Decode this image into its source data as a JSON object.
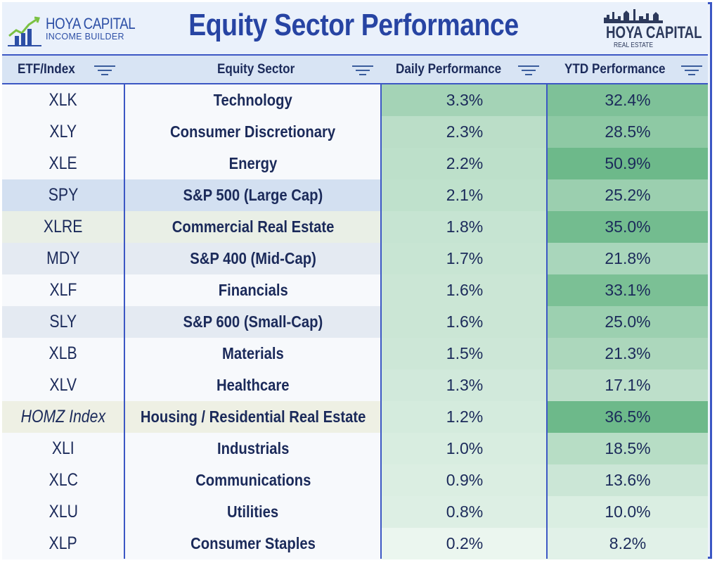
{
  "header": {
    "left_logo_line1": "HOYA CAPITAL",
    "left_logo_line2": "INCOME BUILDER",
    "title": "Equity Sector Performance",
    "right_logo_line1": "HOYA CAPITAL",
    "right_logo_line2": "REAL ESTATE"
  },
  "columns": {
    "etf": "ETF/Index",
    "sector": "Equity Sector",
    "daily": "Daily Performance",
    "ytd": "YTD Performance"
  },
  "colors": {
    "border": "#3c57c4",
    "title": "#2744a3",
    "strong_green": "#6db98a",
    "light_green": "#e6f4ec"
  },
  "rows": [
    {
      "etf": "XLK",
      "sector": "Technology",
      "daily": "3.3%",
      "ytd": "32.4%",
      "daily_val": 3.3,
      "ytd_val": 32.4,
      "highlight": ""
    },
    {
      "etf": "XLY",
      "sector": "Consumer Discretionary",
      "daily": "2.3%",
      "ytd": "28.5%",
      "daily_val": 2.3,
      "ytd_val": 28.5,
      "highlight": ""
    },
    {
      "etf": "XLE",
      "sector": "Energy",
      "daily": "2.2%",
      "ytd": "50.9%",
      "daily_val": 2.2,
      "ytd_val": 50.9,
      "highlight": ""
    },
    {
      "etf": "SPY",
      "sector": "S&P 500 (Large Cap)",
      "daily": "2.1%",
      "ytd": "25.2%",
      "daily_val": 2.1,
      "ytd_val": 25.2,
      "highlight": "#d3e0f1"
    },
    {
      "etf": "XLRE",
      "sector": "Commercial Real Estate",
      "daily": "1.8%",
      "ytd": "35.0%",
      "daily_val": 1.8,
      "ytd_val": 35.0,
      "highlight": "#e9efe6"
    },
    {
      "etf": "MDY",
      "sector": "S&P 400 (Mid-Cap)",
      "daily": "1.7%",
      "ytd": "21.8%",
      "daily_val": 1.7,
      "ytd_val": 21.8,
      "highlight": "#e4eaf2"
    },
    {
      "etf": "XLF",
      "sector": "Financials",
      "daily": "1.6%",
      "ytd": "33.1%",
      "daily_val": 1.6,
      "ytd_val": 33.1,
      "highlight": ""
    },
    {
      "etf": "SLY",
      "sector": "S&P 600 (Small-Cap)",
      "daily": "1.6%",
      "ytd": "25.0%",
      "daily_val": 1.6,
      "ytd_val": 25.0,
      "highlight": "#e4eaf2"
    },
    {
      "etf": "XLB",
      "sector": "Materials",
      "daily": "1.5%",
      "ytd": "21.3%",
      "daily_val": 1.5,
      "ytd_val": 21.3,
      "highlight": ""
    },
    {
      "etf": "XLV",
      "sector": "Healthcare",
      "daily": "1.3%",
      "ytd": "17.1%",
      "daily_val": 1.3,
      "ytd_val": 17.1,
      "highlight": ""
    },
    {
      "etf": "HOMZ Index",
      "sector": "Housing / Residential Real Estate",
      "daily": "1.2%",
      "ytd": "36.5%",
      "daily_val": 1.2,
      "ytd_val": 36.5,
      "highlight": "#eef0e4",
      "italic": true
    },
    {
      "etf": "XLI",
      "sector": "Industrials",
      "daily": "1.0%",
      "ytd": "18.5%",
      "daily_val": 1.0,
      "ytd_val": 18.5,
      "highlight": ""
    },
    {
      "etf": "XLC",
      "sector": "Communications",
      "daily": "0.9%",
      "ytd": "13.6%",
      "daily_val": 0.9,
      "ytd_val": 13.6,
      "highlight": ""
    },
    {
      "etf": "XLU",
      "sector": "Utilities",
      "daily": "0.8%",
      "ytd": "10.0%",
      "daily_val": 0.8,
      "ytd_val": 10.0,
      "highlight": ""
    },
    {
      "etf": "XLP",
      "sector": "Consumer Staples",
      "daily": "0.2%",
      "ytd": "8.2%",
      "daily_val": 0.2,
      "ytd_val": 8.2,
      "highlight": ""
    }
  ]
}
